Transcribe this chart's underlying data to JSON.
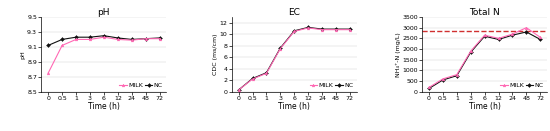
{
  "time_x": [
    0,
    0.5,
    1,
    3,
    6,
    12,
    24,
    48,
    72
  ],
  "ph": {
    "title": "pH",
    "ylabel": "pH",
    "ylim": [
      8.5,
      9.5
    ],
    "yticks": [
      8.5,
      8.7,
      8.9,
      9.1,
      9.3,
      9.5
    ],
    "milk": [
      8.75,
      9.12,
      9.2,
      9.2,
      9.23,
      9.2,
      9.19,
      9.21,
      9.21
    ],
    "nc": [
      9.12,
      9.2,
      9.23,
      9.23,
      9.25,
      9.22,
      9.2,
      9.21,
      9.22
    ]
  },
  "ec": {
    "title": "EC",
    "ylabel": "CDC (ms/cm)",
    "ylim": [
      0,
      13
    ],
    "yticks": [
      0,
      2,
      4,
      6,
      8,
      10,
      12
    ],
    "milk": [
      0.3,
      2.2,
      3.2,
      7.5,
      10.5,
      11.1,
      10.8,
      10.8,
      10.8
    ],
    "nc": [
      0.3,
      2.3,
      3.3,
      7.6,
      10.6,
      11.2,
      10.9,
      10.9,
      10.9
    ]
  },
  "totaln": {
    "title": "Total N",
    "ylabel": "NH₄⁺-N (mg/L)",
    "ylim": [
      0,
      3500
    ],
    "yticks": [
      0,
      500,
      1000,
      1500,
      2000,
      2500,
      3000,
      3500
    ],
    "milk": [
      200,
      600,
      800,
      1900,
      2650,
      2500,
      2700,
      3000,
      2550
    ],
    "nc": [
      150,
      550,
      750,
      1850,
      2600,
      2450,
      2650,
      2800,
      2450
    ],
    "hline": 2850,
    "hline_color": "#d03030"
  },
  "xtick_labels": [
    "0",
    "0.5",
    "1",
    "3",
    "6",
    "12",
    "24",
    "48",
    "72"
  ],
  "milk_color": "#ff69b4",
  "nc_color": "#111111",
  "xlabel": "Time (h)",
  "legend_milk": "MILK",
  "legend_nc": "NC",
  "fig_width": 5.5,
  "fig_height": 1.31,
  "dpi": 100
}
